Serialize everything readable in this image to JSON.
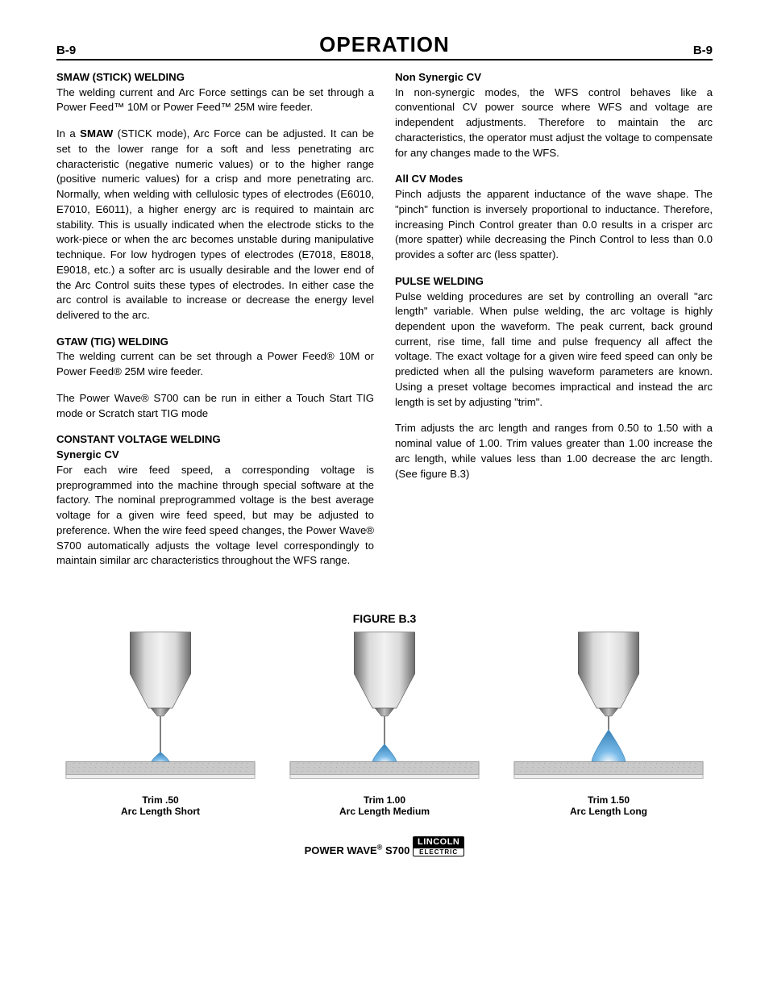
{
  "page": {
    "num_left": "B-9",
    "num_right": "B-9",
    "title": "OPERATION"
  },
  "left_col": {
    "smaw_head": "SMAW (STICK) WELDING",
    "smaw_p1": "The welding current and Arc Force settings can be set through a Power Feed™ 10M or Power Feed™ 25M wire feeder.",
    "smaw_p2_prefix": "In a ",
    "smaw_p2_bold": "SMAW",
    "smaw_p2_rest": " (STICK mode), Arc Force can be adjusted. It can be set to the lower range for a soft and less penetrating arc characteristic (negative numeric values) or to the higher range (positive numeric values) for a crisp and more penetrating arc. Normally, when welding with cellulosic types of electrodes (E6010, E7010, E6011), a higher energy arc is required to maintain arc stability. This is usually indicated when the electrode sticks to the work-piece or when the arc becomes unstable during manipulative technique. For low hydrogen types of electrodes (E7018, E8018, E9018, etc.) a softer arc is usually desirable and the lower end of the Arc Control suits these types of electrodes. In either case the arc control is available to increase or decrease the energy level delivered to the arc.",
    "gtaw_head": "GTAW  (TIG) WELDING",
    "gtaw_p1": "The welding current can be set through a Power Feed® 10M or Power Feed® 25M wire feeder.",
    "gtaw_p2": "The Power Wave® S700 can be run in either a Touch Start TIG mode or Scratch start TIG mode",
    "cv_head": "CONSTANT VOLTAGE WELDING",
    "cv_sub": "Synergic CV",
    "cv_p1": "For each wire feed speed, a corresponding voltage is preprogrammed into the machine through special software at the factory.  The nominal preprogrammed voltage is the best average voltage for a given wire feed speed, but may be adjusted to preference. When the wire feed speed changes, the Power Wave® S700 automatically adjusts the voltage level correspondingly to maintain similar arc characteristics throughout the WFS range."
  },
  "right_col": {
    "nonsyn_head": "Non Synergic CV",
    "nonsyn_p1": "In non-synergic modes, the WFS control behaves like a conventional CV power source where WFS and voltage are independent adjustments.  Therefore to maintain the arc characteristics, the operator must adjust the voltage to compensate for any changes made to the WFS.",
    "allcv_head": "All CV Modes",
    "allcv_p1": "Pinch adjusts the apparent inductance of the wave shape.  The \"pinch\" function is inversely proportional to inductance.  Therefore, increasing Pinch Control greater than 0.0 results in a crisper arc (more spatter) while decreasing the Pinch Control to less than 0.0 provides a softer arc (less spatter).",
    "pulse_head": "PULSE WELDING",
    "pulse_p1": "Pulse welding procedures are set by controlling an overall \"arc length\" variable.  When pulse welding, the arc voltage is highly dependent upon the waveform. The peak current, back ground current, rise time, fall time and pulse frequency all affect the voltage.  The exact voltage for a given wire feed speed can only be predicted when all the pulsing waveform parameters are known.  Using a preset voltage becomes impractical and instead the arc length is set by adjusting \"trim\".",
    "pulse_p2": "Trim adjusts the arc length and ranges from 0.50 to 1.50 with a nominal value of 1.00.  Trim values greater than 1.00 increase the arc length, while values less than 1.00 decrease the arc length. (See figure B.3)"
  },
  "figure": {
    "title": "FIGURE B.3",
    "items": [
      {
        "trim": "Trim .50",
        "desc": "Arc Length Short",
        "arc_height": 12,
        "arc_width": 22
      },
      {
        "trim": "Trim 1.00",
        "desc": "Arc Length Medium",
        "arc_height": 22,
        "arc_width": 30
      },
      {
        "trim": "Trim 1.50",
        "desc": "Arc Length Long",
        "arc_height": 40,
        "arc_width": 42
      }
    ],
    "colors": {
      "nozzle_light": "#d9d9d9",
      "nozzle_dark": "#6b6b6b",
      "tip_light": "#bfbfbf",
      "tip_dark": "#5a5a5a",
      "wire": "#808080",
      "arc_fill": "#6fb6e8",
      "arc_stroke": "#2f7fb8",
      "plate_fill": "#c9c9c9",
      "plate_stroke": "#8a8a8a",
      "plate_texture": "#a8a8a8"
    }
  },
  "footer": {
    "product_prefix": "POWER WAVE",
    "product_suffix": " S700",
    "logo_top": "LINCOLN",
    "logo_bot": "ELECTRIC"
  }
}
